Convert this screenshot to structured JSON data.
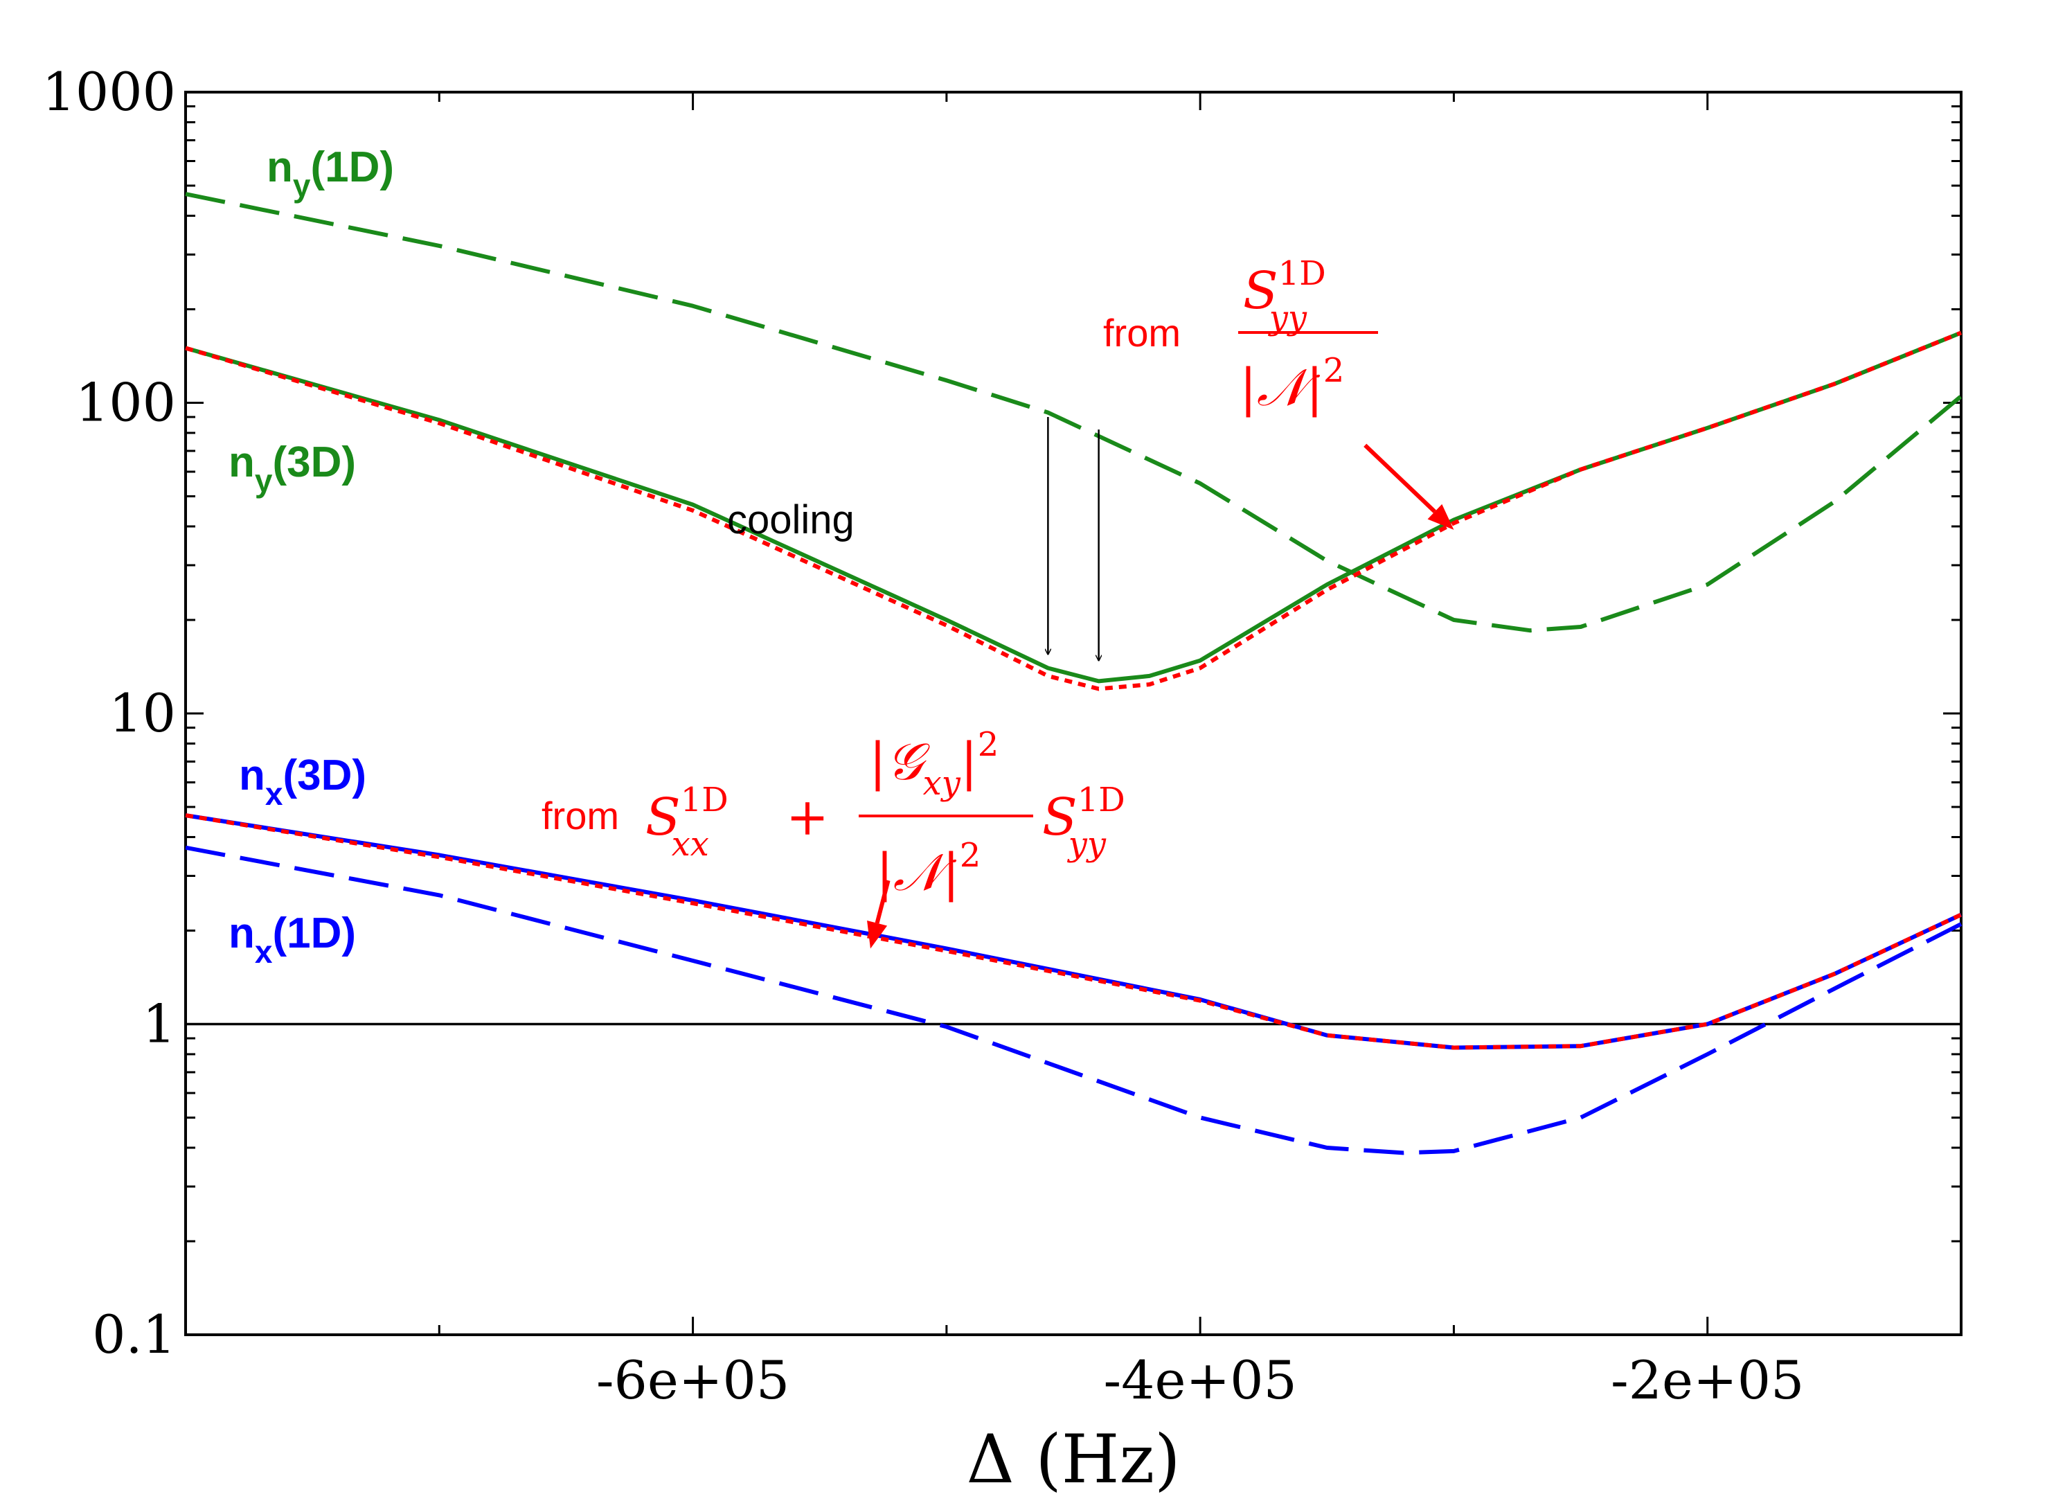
{
  "chart_data": {
    "type": "line",
    "title": "",
    "xlabel": "Δ (Hz)",
    "ylabel": "",
    "xscale": "linear",
    "yscale": "log",
    "xlim": [
      -800000,
      -100000
    ],
    "ylim": [
      0.1,
      1000
    ],
    "x_ticks": [
      -600000,
      -400000,
      -200000
    ],
    "x_tick_labels": [
      "-6e+05",
      "-4e+05",
      "-2e+05"
    ],
    "y_ticks": [
      0.1,
      1,
      10,
      100,
      1000
    ],
    "y_tick_labels": [
      "0.1",
      "1",
      "10",
      "100",
      "1000"
    ],
    "grid": false,
    "reference_line": {
      "y": 1,
      "color": "#000000"
    },
    "series": [
      {
        "name": "n_y(1D)",
        "color": "#1a8a1a",
        "dash": "long-dash",
        "x": [
          -800000,
          -700000,
          -600000,
          -500000,
          -460000,
          -400000,
          -350000,
          -330000,
          -300000,
          -270000,
          -250000,
          -200000,
          -150000,
          -100000
        ],
        "y": [
          470,
          320,
          205,
          118,
          93,
          55,
          31,
          26,
          20,
          18.5,
          19,
          26,
          48,
          105
        ]
      },
      {
        "name": "n_y(3D)",
        "color": "#1a8a1a",
        "dash": "solid",
        "x": [
          -800000,
          -700000,
          -600000,
          -500000,
          -460000,
          -440000,
          -420000,
          -400000,
          -350000,
          -300000,
          -250000,
          -200000,
          -150000,
          -100000
        ],
        "y": [
          150,
          88,
          47,
          20,
          14,
          12.7,
          13.2,
          14.8,
          26,
          42,
          61,
          83,
          115,
          168
        ]
      },
      {
        "name": "from S_yy^1D / |N|^2",
        "color": "#ff0000",
        "dash": "dotted",
        "x": [
          -800000,
          -700000,
          -600000,
          -500000,
          -460000,
          -440000,
          -420000,
          -400000,
          -350000,
          -300000,
          -250000,
          -200000,
          -150000,
          -100000
        ],
        "y": [
          150,
          86,
          45,
          19.2,
          13.2,
          12,
          12.4,
          14,
          25,
          41,
          61,
          83,
          115,
          168
        ]
      },
      {
        "name": "n_x(3D)",
        "color": "#0000ff",
        "dash": "solid",
        "x": [
          -800000,
          -700000,
          -600000,
          -500000,
          -400000,
          -350000,
          -300000,
          -250000,
          -200000,
          -150000,
          -100000
        ],
        "y": [
          4.7,
          3.5,
          2.5,
          1.75,
          1.2,
          0.92,
          0.84,
          0.85,
          1.0,
          1.45,
          2.25
        ]
      },
      {
        "name": "from S_xx^1D + |G_xy|^2/|N|^2 S_yy^1D",
        "color": "#ff0000",
        "dash": "dotted",
        "x": [
          -800000,
          -700000,
          -600000,
          -500000,
          -400000,
          -350000,
          -300000,
          -250000,
          -200000,
          -150000,
          -100000
        ],
        "y": [
          4.7,
          3.45,
          2.45,
          1.72,
          1.19,
          0.92,
          0.84,
          0.85,
          1.0,
          1.45,
          2.25
        ]
      },
      {
        "name": "n_x(1D)",
        "color": "#0000ff",
        "dash": "long-dash",
        "x": [
          -800000,
          -700000,
          -600000,
          -500000,
          -450000,
          -400000,
          -350000,
          -320000,
          -300000,
          -250000,
          -200000,
          -150000,
          -100000
        ],
        "y": [
          3.7,
          2.6,
          1.6,
          0.98,
          0.7,
          0.5,
          0.4,
          0.385,
          0.39,
          0.5,
          0.8,
          1.3,
          2.1
        ]
      }
    ],
    "labels": {
      "ny1d": {
        "main": "n",
        "sub": "y",
        "tail": "(1D)",
        "color": "#1a8a1a"
      },
      "ny3d": {
        "main": "n",
        "sub": "y",
        "tail": "(3D)",
        "color": "#1a8a1a"
      },
      "nx3d": {
        "main": "n",
        "sub": "x",
        "tail": "(3D)",
        "color": "#0000ff"
      },
      "nx1d": {
        "main": "n",
        "sub": "x",
        "tail": "(1D)",
        "color": "#0000ff"
      }
    },
    "annotations": {
      "cooling": "cooling",
      "cooling_arrows": [
        {
          "x": -460000,
          "y_from": 90,
          "y_to": 15.5
        },
        {
          "x": -440000,
          "y_from": 82,
          "y_to": 14.8
        }
      ],
      "from_yy": {
        "prefix": "from",
        "S": "S",
        "sup": "1D",
        "sub": "yy",
        "denominator": "|𝒩|",
        "den_sup": "2",
        "arrow": {
          "x_from": -335000,
          "y_from": 73,
          "x_to": -300000,
          "y_to": 39
        }
      },
      "from_xx": {
        "prefix": "from",
        "S1": "S",
        "sup1": "1D",
        "sub1": "xx",
        "plus": "+",
        "num": "|𝒢",
        "num_sub": "xy",
        "num_tail": "|",
        "num_sup": "2",
        "den": "|𝒩|",
        "den_sup": "2",
        "S2": "S",
        "sup2": "1D",
        "sub2": "yy",
        "arrow": {
          "x_from": -523000,
          "y_from": 2.9,
          "x_to": -530000,
          "y_to": 1.75
        }
      }
    }
  }
}
